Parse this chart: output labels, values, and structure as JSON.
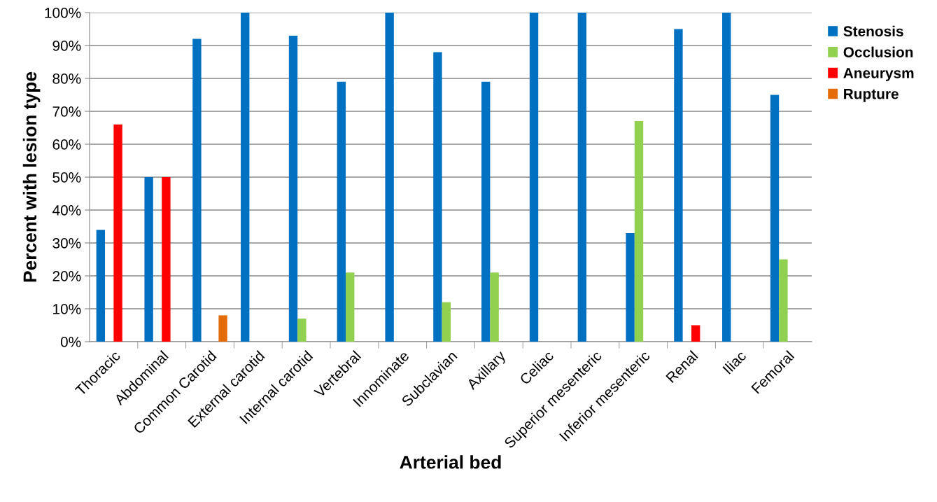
{
  "chart_data": {
    "type": "bar",
    "xlabel": "Arterial bed",
    "ylabel": "Percent with lesion type",
    "categories": [
      "Thoracic",
      "Abdominal",
      "Common Carotid",
      "External carotid",
      "Internal carotid",
      "Vertebral",
      "Innominate",
      "Subclavian",
      "Axillary",
      "Celiac",
      "Superior mesenteric",
      "Inferior mesenteric",
      "Renal",
      "Iliac",
      "Femoral"
    ],
    "series": [
      {
        "name": "Stenosis",
        "color": "#0070c0",
        "values": [
          34,
          50,
          92,
          100,
          93,
          79,
          100,
          88,
          79,
          100,
          100,
          33,
          95,
          100,
          75
        ]
      },
      {
        "name": "Occlusion",
        "color": "#92d050",
        "values": [
          null,
          null,
          null,
          null,
          7,
          21,
          null,
          12,
          21,
          null,
          null,
          67,
          null,
          null,
          25
        ]
      },
      {
        "name": "Aneurysm",
        "color": "#ff0000",
        "values": [
          66,
          50,
          null,
          null,
          null,
          null,
          null,
          null,
          null,
          null,
          null,
          null,
          5,
          null,
          null
        ]
      },
      {
        "name": "Rupture",
        "color": "#e36c09",
        "values": [
          null,
          null,
          8,
          null,
          null,
          null,
          null,
          null,
          null,
          null,
          null,
          null,
          null,
          null,
          null
        ]
      }
    ],
    "ylim": [
      0,
      100
    ],
    "yticks": [
      {
        "value": 0,
        "label": "0%"
      },
      {
        "value": 10,
        "label": "10%"
      },
      {
        "value": 20,
        "label": "20%"
      },
      {
        "value": 30,
        "label": "30%"
      },
      {
        "value": 40,
        "label": "40%"
      },
      {
        "value": 50,
        "label": "50%"
      },
      {
        "value": 60,
        "label": "60%"
      },
      {
        "value": 70,
        "label": "70%"
      },
      {
        "value": 80,
        "label": "80%"
      },
      {
        "value": 90,
        "label": "90%"
      },
      {
        "value": 100,
        "label": "100%"
      }
    ],
    "grid": "y",
    "legend": "top right"
  }
}
